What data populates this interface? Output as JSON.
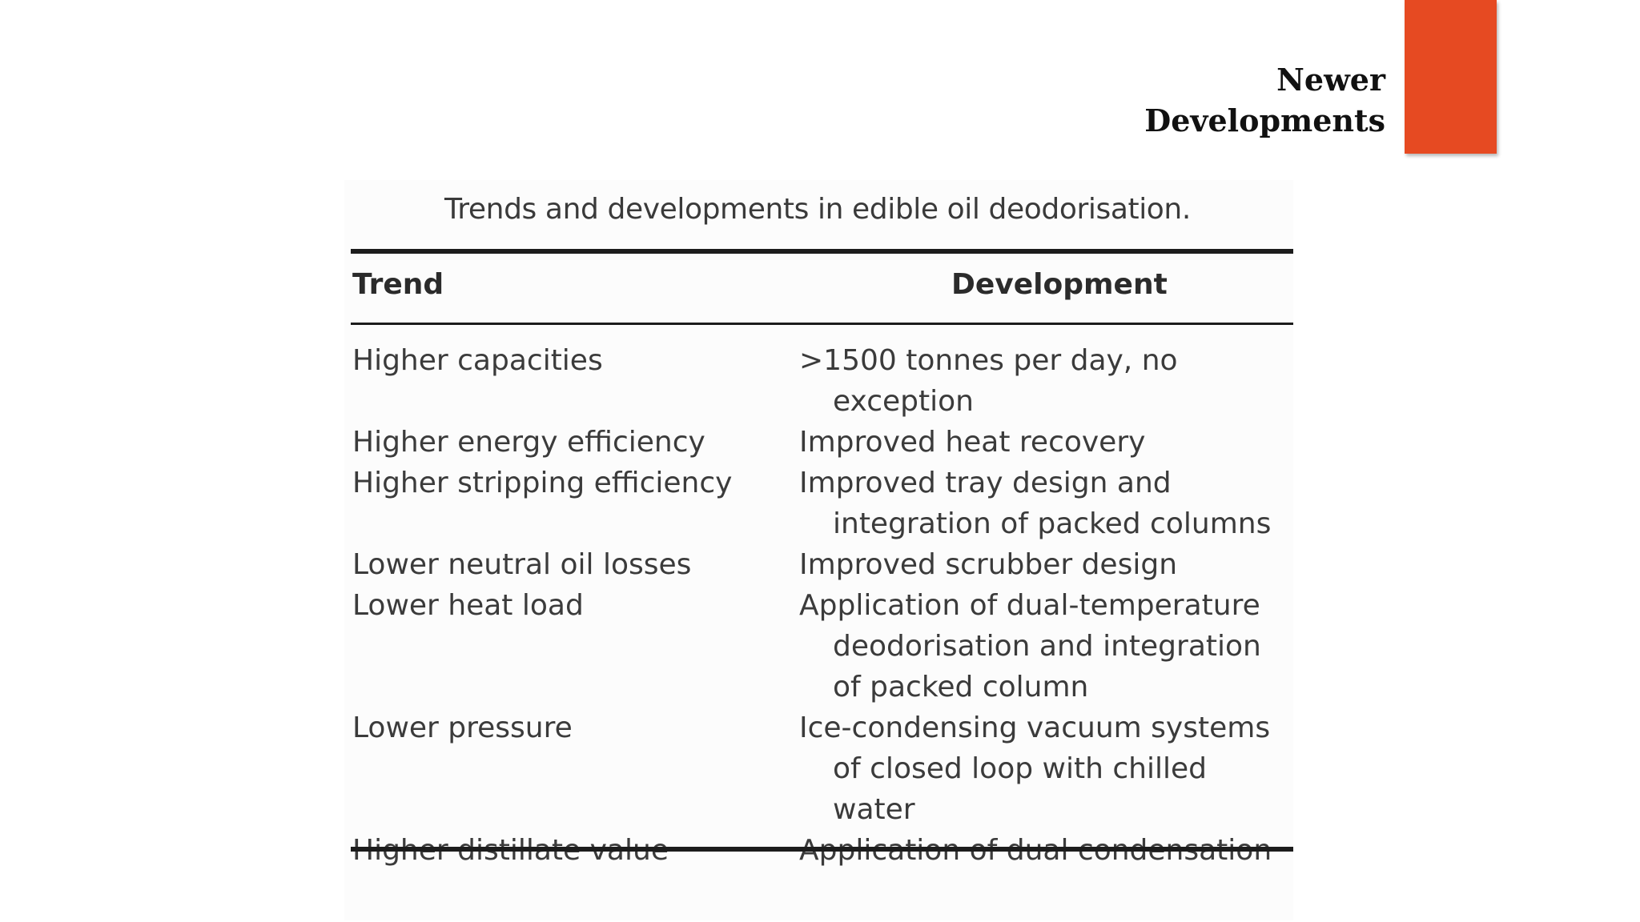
{
  "slide": {
    "title_line1": "Newer",
    "title_line2": "Developments",
    "accent_color": "#e64a22"
  },
  "table": {
    "caption": "Trends and developments in edible oil deodorisation.",
    "headers": {
      "trend": "Trend",
      "development": "Development"
    },
    "rows": [
      {
        "trend": "Higher capacities",
        "development": ">1500 tonnes per day, no exception"
      },
      {
        "trend": "Higher energy efficiency",
        "development": "Improved heat recovery"
      },
      {
        "trend": "Higher stripping efficiency",
        "development": "Improved tray design and integration of packed columns"
      },
      {
        "trend": "Lower neutral oil losses",
        "development": "Improved scrubber design"
      },
      {
        "trend": "Lower heat load",
        "development": "Application of dual-temperature deodorisation and integration of packed column"
      },
      {
        "trend": "Lower pressure",
        "development": "Ice-condensing vacuum systems of closed loop with chilled water"
      },
      {
        "trend": "Higher distillate value",
        "development": "Application of dual condensation"
      }
    ]
  }
}
